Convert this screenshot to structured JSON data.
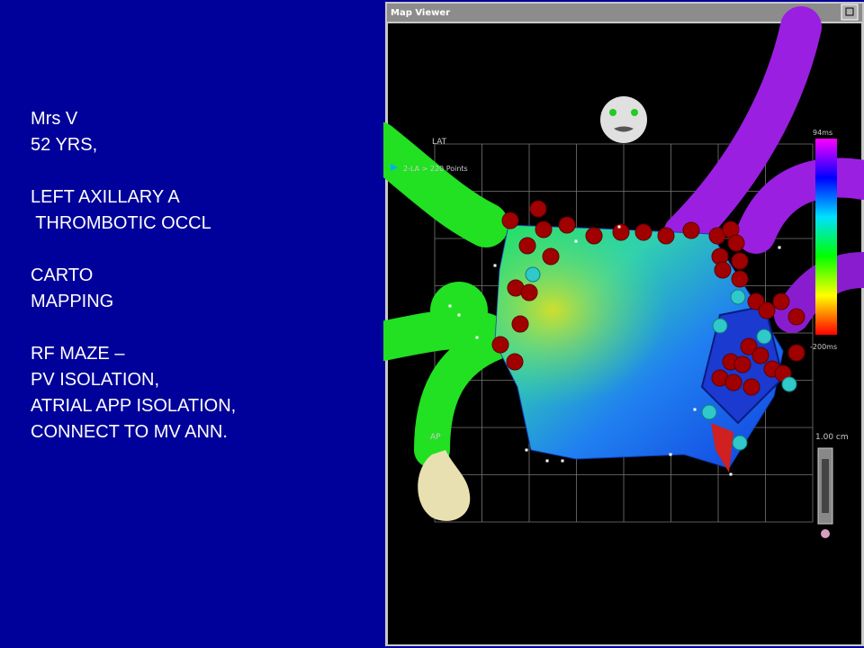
{
  "slide": {
    "paragraphs": [
      [
        "Mrs V",
        "52 YRS,"
      ],
      [
        "LEFT AXILLARY A",
        " THROMBOTIC OCCL"
      ],
      [
        "CARTO",
        "MAPPING"
      ],
      [
        "RF MAZE –",
        "PV ISOLATION,",
        "ATRIAL APP ISOLATION,",
        "CONNECT TO MV ANN."
      ]
    ]
  },
  "window": {
    "title": "Map Viewer",
    "view_label": "LAT",
    "map_label": "2-LA > 220 Points",
    "scale_top": "94ms",
    "scale_bottom": "-200ms",
    "orientation": "AP",
    "scale_bar": "1.00 cm"
  }
}
